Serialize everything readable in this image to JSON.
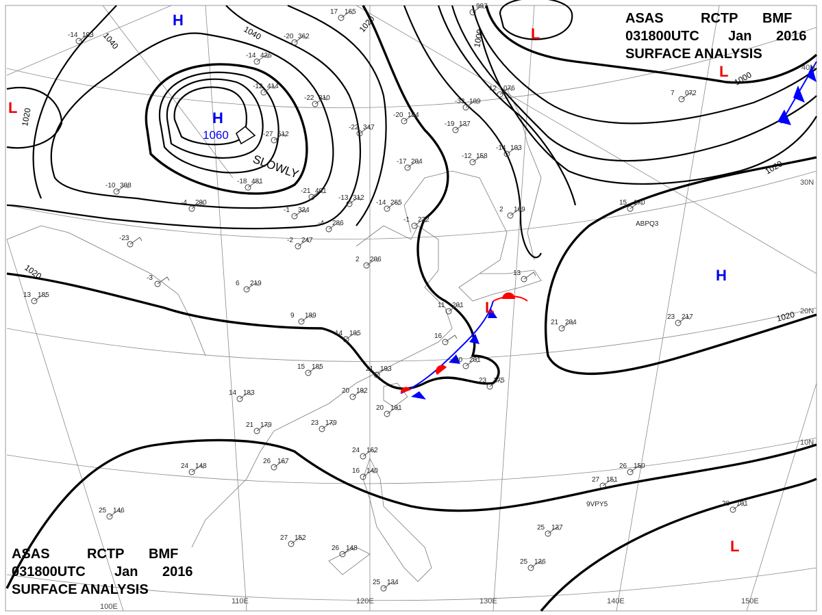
{
  "header": {
    "line1": [
      "ASAS",
      "RCTP",
      "BMF"
    ],
    "line2": [
      "031800UTC",
      "Jan",
      "2016"
    ],
    "line3": "SURFACE ANALYSIS"
  },
  "colors": {
    "high": "#0000ee",
    "low": "#ee0000",
    "cold_front": "#0000ff",
    "warm_front": "#ff0000",
    "isobar": "#000000"
  },
  "pressure_centers": [
    {
      "type": "H",
      "value": "1060",
      "motion": "SLOWLY"
    },
    {
      "type": "H"
    },
    {
      "type": "H"
    },
    {
      "type": "L"
    },
    {
      "type": "L"
    },
    {
      "type": "L"
    },
    {
      "type": "L"
    },
    {
      "type": "L"
    }
  ],
  "isobar_labels": [
    "1040",
    "1040",
    "1020",
    "1020",
    "1020",
    "1020",
    "1020",
    "1000",
    "1000"
  ],
  "longitude_labels": [
    "100E",
    "110E",
    "120E",
    "130E",
    "140E",
    "150E"
  ],
  "latitude_labels": [
    "40N",
    "30N",
    "20N",
    "10N"
  ],
  "ship_ids": [
    "ABPQ3",
    "9VPY5"
  ],
  "stations": [
    [
      "-14",
      "426"
    ],
    [
      "-20",
      "362"
    ],
    [
      "-12",
      "414"
    ],
    [
      "-22",
      "310"
    ],
    [
      "-27",
      "512"
    ],
    [
      "-18",
      "481"
    ],
    [
      "-21",
      "401"
    ],
    [
      "-1",
      "324"
    ],
    [
      "-4",
      "290"
    ],
    [
      "-23",
      ""
    ],
    [
      "-3",
      ""
    ],
    [
      "6",
      "219"
    ],
    [
      "13",
      "185"
    ],
    [
      "9",
      "199"
    ],
    [
      "14",
      "195"
    ],
    [
      "15",
      "185"
    ],
    [
      "14",
      "183"
    ],
    [
      "21",
      "179"
    ],
    [
      "23",
      "179"
    ],
    [
      "26",
      "167"
    ],
    [
      "24",
      "148"
    ],
    [
      "25",
      "146"
    ],
    [
      "27",
      "152"
    ],
    [
      "26",
      "148"
    ],
    [
      "25",
      "134"
    ],
    [
      "21",
      "193"
    ],
    [
      "20",
      "192"
    ],
    [
      "20",
      "191"
    ],
    [
      "23",
      "175"
    ],
    [
      "20",
      "201"
    ],
    [
      "16",
      ""
    ],
    [
      "11",
      "201"
    ],
    [
      "13",
      ""
    ],
    [
      "21",
      "204"
    ],
    [
      "23",
      "217"
    ],
    [
      "15",
      "170"
    ],
    [
      "27",
      "151"
    ],
    [
      "26",
      "150"
    ],
    [
      "28",
      "101"
    ],
    [
      "25",
      "127"
    ],
    [
      "25",
      "126"
    ],
    [
      "24",
      "162"
    ],
    [
      "16",
      "140"
    ],
    [
      "-17",
      "204"
    ],
    [
      "-14",
      "265"
    ],
    [
      "-13",
      "312"
    ],
    [
      "-22",
      "347"
    ],
    [
      "-20",
      "154"
    ],
    [
      "-19",
      "137"
    ],
    [
      "-33",
      "109"
    ],
    [
      "-12",
      "158"
    ],
    [
      "-14",
      "103"
    ],
    [
      "2",
      "169"
    ],
    [
      "-2",
      "247"
    ],
    [
      "-4",
      "286"
    ],
    [
      "2",
      "206"
    ],
    [
      "-1",
      "222"
    ],
    [
      "17",
      "165"
    ],
    [
      "-14",
      "193"
    ],
    [
      "-10",
      "308"
    ],
    [
      "12",
      "076"
    ],
    [
      "7",
      "072"
    ],
    [
      "",
      "997"
    ]
  ]
}
